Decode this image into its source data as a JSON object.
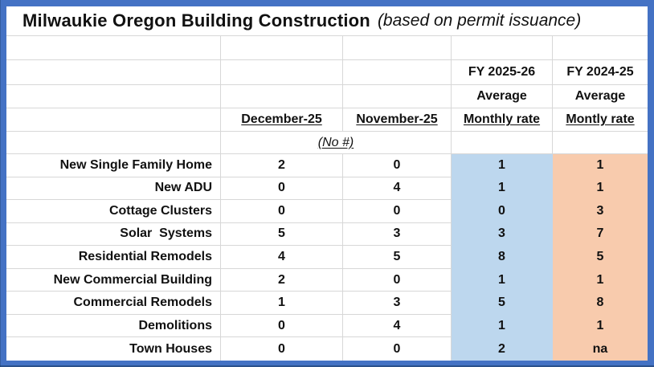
{
  "title": {
    "main": "Milwaukie Oregon Building Construction",
    "subtitle": "(based on permit issuance)"
  },
  "table": {
    "headers": {
      "dec": "December-25",
      "nov": "November-25",
      "fy26": {
        "line1": "FY 2025-26",
        "line2": "Average",
        "line3": "Monthly rate"
      },
      "fy25": {
        "line1": "FY 2024-25",
        "line2": "Average",
        "line3": "Montly rate"
      }
    },
    "note": "(No #)",
    "rows": [
      {
        "label": "New Single Family Home",
        "dec": "2",
        "nov": "0",
        "fy26": "1",
        "fy25": "1"
      },
      {
        "label": "New ADU",
        "dec": "0",
        "nov": "4",
        "fy26": "1",
        "fy25": "1"
      },
      {
        "label": "Cottage Clusters",
        "dec": "0",
        "nov": "0",
        "fy26": "0",
        "fy25": "3"
      },
      {
        "label": "Solar  Systems",
        "dec": "5",
        "nov": "3",
        "fy26": "3",
        "fy25": "7"
      },
      {
        "label": "Residential Remodels",
        "dec": "4",
        "nov": "5",
        "fy26": "8",
        "fy25": "5"
      },
      {
        "label": "New Commercial Building",
        "dec": "2",
        "nov": "0",
        "fy26": "1",
        "fy25": "1"
      },
      {
        "label": "Commercial Remodels",
        "dec": "1",
        "nov": "3",
        "fy26": "5",
        "fy25": "8"
      },
      {
        "label": "Demolitions",
        "dec": "0",
        "nov": "4",
        "fy26": "1",
        "fy25": "1"
      },
      {
        "label": "Town Houses",
        "dec": "0",
        "nov": "0",
        "fy26": "2",
        "fy25": "na"
      }
    ],
    "colors": {
      "fy26_fill": "#BDD7EE",
      "fy25_fill": "#F8CBAD",
      "frame": "#4472C4",
      "gridline": "#D7D7D7"
    }
  },
  "chart_data": {
    "type": "table",
    "title": "Milwaukie Oregon Building Construction (based on permit issuance)",
    "note": "(No #)",
    "categories": [
      "New Single Family Home",
      "New ADU",
      "Cottage Clusters",
      "Solar  Systems",
      "Residential Remodels",
      "New Commercial Building",
      "Commercial Remodels",
      "Demolitions",
      "Town Houses"
    ],
    "series": [
      {
        "name": "December-25",
        "values": [
          2,
          0,
          0,
          5,
          4,
          2,
          1,
          0,
          0
        ]
      },
      {
        "name": "November-25",
        "values": [
          0,
          4,
          0,
          3,
          5,
          0,
          3,
          4,
          0
        ]
      },
      {
        "name": "FY 2025-26 Average Monthly rate",
        "values": [
          1,
          1,
          0,
          3,
          8,
          1,
          5,
          1,
          2
        ]
      },
      {
        "name": "FY 2024-25 Average Montly rate",
        "values": [
          1,
          1,
          3,
          7,
          5,
          1,
          8,
          1,
          "na"
        ]
      }
    ],
    "legend_position": "none",
    "grid": true
  }
}
